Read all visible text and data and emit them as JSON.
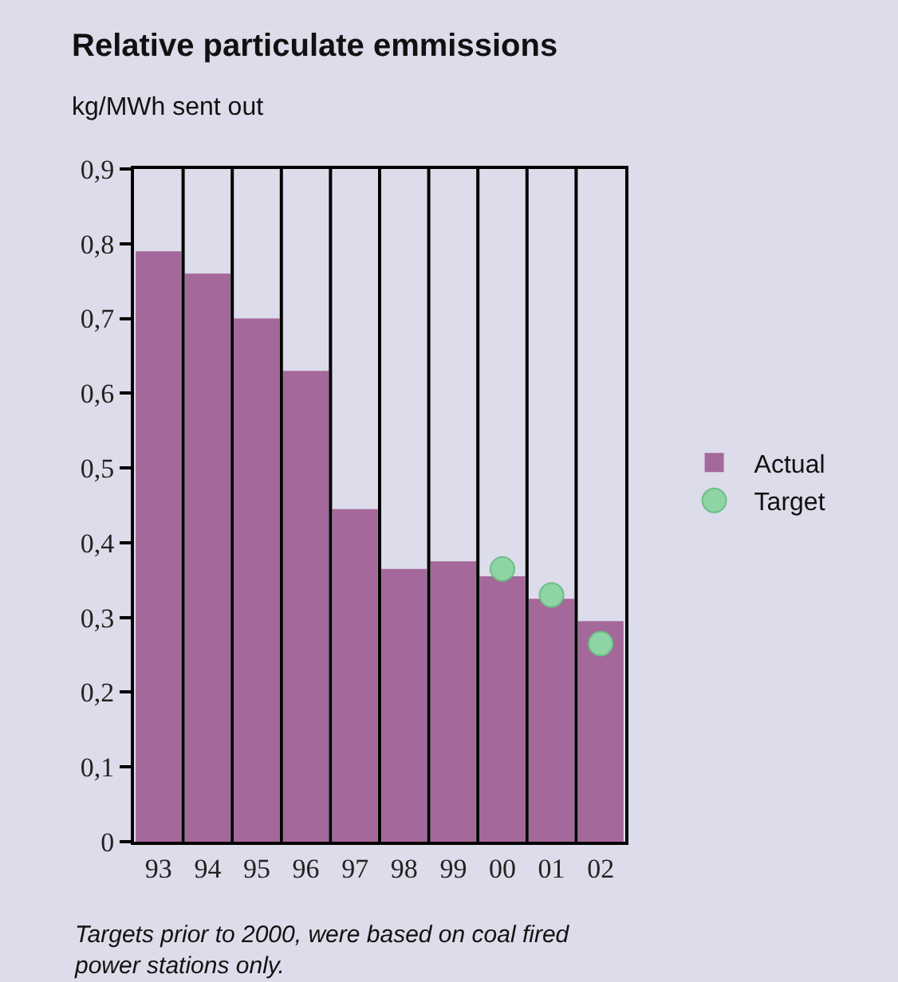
{
  "chart_data": {
    "type": "bar",
    "title": "Relative particulate emmissions",
    "ylabel": "kg/MWh sent out",
    "categories": [
      "93",
      "94",
      "95",
      "96",
      "97",
      "98",
      "99",
      "00",
      "01",
      "02"
    ],
    "series": [
      {
        "name": "Actual",
        "color": "#a4689a",
        "values": [
          0.79,
          0.76,
          0.7,
          0.63,
          0.445,
          0.365,
          0.375,
          0.355,
          0.325,
          0.295
        ]
      },
      {
        "name": "Target",
        "type": "scatter",
        "color": "#8fd4a4",
        "x": [
          "00",
          "01",
          "02"
        ],
        "values": [
          0.365,
          0.33,
          0.265
        ]
      }
    ],
    "ylim": [
      0,
      0.9
    ],
    "yticks": [
      0,
      {
        "value": 0.1,
        "label": "0,1"
      },
      {
        "value": 0.2,
        "label": "0,2"
      },
      {
        "value": 0.3,
        "label": "0,3"
      },
      {
        "value": 0.4,
        "label": "0,4"
      },
      {
        "value": 0.5,
        "label": "0,5"
      },
      {
        "value": 0.6,
        "label": "0,6"
      },
      {
        "value": 0.7,
        "label": "0,7"
      },
      {
        "value": 0.8,
        "label": "0,8"
      },
      {
        "value": 0.9,
        "label": "0,9"
      }
    ],
    "grid": "x",
    "legend": "right",
    "marker": "circle",
    "annotations": [
      "Targets prior to 2000, were based on coal fired power stations only."
    ]
  }
}
